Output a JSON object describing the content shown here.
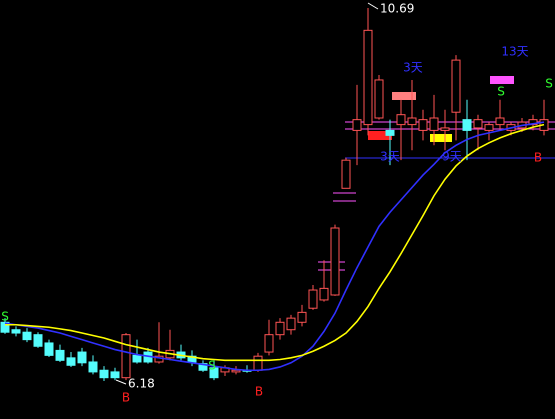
{
  "chart_data": {
    "type": "candlestick",
    "open": [
      6.89,
      6.8,
      6.77,
      6.74,
      6.64,
      6.55,
      6.46,
      6.53,
      6.41,
      6.31,
      6.29,
      6.22,
      6.49,
      6.53,
      6.41,
      6.46,
      6.53,
      6.48,
      6.39,
      6.34,
      6.29,
      6.29,
      6.31,
      6.31,
      6.53,
      6.74,
      6.8,
      6.89,
      7.06,
      7.16,
      7.22,
      8.51,
      9.21,
      9.28,
      9.36,
      9.21,
      9.28,
      9.28,
      9.21,
      9.21,
      9.21,
      9.43,
      9.34,
      9.24,
      9.21,
      9.28,
      9.21,
      9.24,
      9.28,
      9.21
    ],
    "high": [
      6.94,
      6.84,
      6.82,
      6.77,
      6.68,
      6.62,
      6.53,
      6.58,
      6.49,
      6.36,
      6.34,
      6.76,
      6.68,
      6.58,
      6.89,
      6.8,
      6.62,
      6.55,
      6.43,
      6.43,
      6.37,
      6.36,
      6.37,
      6.52,
      6.92,
      6.94,
      6.98,
      7.1,
      7.34,
      7.64,
      8.07,
      8.88,
      9.76,
      10.69,
      9.88,
      9.34,
      9.58,
      9.82,
      9.46,
      9.64,
      9.46,
      10.12,
      9.58,
      9.4,
      9.31,
      9.58,
      9.31,
      9.36,
      9.4,
      9.58
    ],
    "low": [
      6.75,
      6.72,
      6.65,
      6.58,
      6.47,
      6.41,
      6.35,
      6.36,
      6.26,
      6.18,
      6.19,
      6.19,
      6.39,
      6.39,
      6.39,
      6.43,
      6.43,
      6.36,
      6.29,
      6.19,
      6.24,
      6.26,
      6.28,
      6.29,
      6.49,
      6.68,
      6.74,
      6.84,
      7.04,
      7.14,
      7.21,
      8.51,
      8.79,
      9.15,
      9.34,
      8.79,
      8.85,
      8.97,
      9.09,
      9.03,
      8.97,
      9.09,
      8.85,
      8.97,
      9.09,
      9.21,
      9.15,
      9.19,
      9.21,
      9.15
    ],
    "close": [
      6.77,
      6.76,
      6.68,
      6.6,
      6.49,
      6.43,
      6.37,
      6.4,
      6.29,
      6.22,
      6.22,
      6.74,
      6.41,
      6.41,
      6.48,
      6.55,
      6.46,
      6.41,
      6.31,
      6.22,
      6.34,
      6.31,
      6.3,
      6.48,
      6.74,
      6.89,
      6.94,
      7.01,
      7.28,
      7.3,
      8.03,
      8.85,
      9.34,
      10.42,
      9.82,
      9.15,
      9.4,
      9.36,
      9.34,
      9.36,
      9.24,
      10.06,
      9.21,
      9.34,
      9.28,
      9.36,
      9.28,
      9.31,
      9.34,
      9.34
    ],
    "up_color": "#ff5454",
    "down_color": "#54fcfc",
    "lines": [
      {
        "color": "#3030ff",
        "values": [
          6.88,
          6.86,
          6.84,
          6.82,
          6.79,
          6.76,
          6.72,
          6.68,
          6.64,
          6.6,
          6.56,
          6.53,
          6.5,
          6.48,
          6.46,
          6.44,
          6.42,
          6.4,
          6.38,
          6.36,
          6.34,
          6.32,
          6.31,
          6.31,
          6.32,
          6.35,
          6.4,
          6.48,
          6.6,
          6.78,
          7.0,
          7.28,
          7.55,
          7.8,
          8.05,
          8.22,
          8.37,
          8.52,
          8.67,
          8.8,
          8.94,
          9.03,
          9.1,
          9.15,
          9.18,
          9.21,
          9.24,
          9.27,
          9.29,
          9.31
        ]
      },
      {
        "color": "#ffff00",
        "values": [
          6.86,
          6.86,
          6.85,
          6.84,
          6.83,
          6.81,
          6.79,
          6.76,
          6.73,
          6.7,
          6.66,
          6.62,
          6.59,
          6.56,
          6.53,
          6.51,
          6.49,
          6.47,
          6.45,
          6.44,
          6.43,
          6.43,
          6.43,
          6.43,
          6.43,
          6.44,
          6.46,
          6.49,
          6.54,
          6.6,
          6.67,
          6.76,
          6.9,
          7.08,
          7.3,
          7.5,
          7.72,
          7.95,
          8.18,
          8.42,
          8.62,
          8.78,
          8.9,
          8.99,
          9.06,
          9.12,
          9.17,
          9.21,
          9.25,
          9.28
        ]
      }
    ],
    "annotations": [
      "10.69",
      "6.18",
      "3天",
      "13天",
      "3天",
      "9天",
      "S",
      "S",
      "S",
      "S",
      "B",
      "B",
      "B"
    ]
  }
}
